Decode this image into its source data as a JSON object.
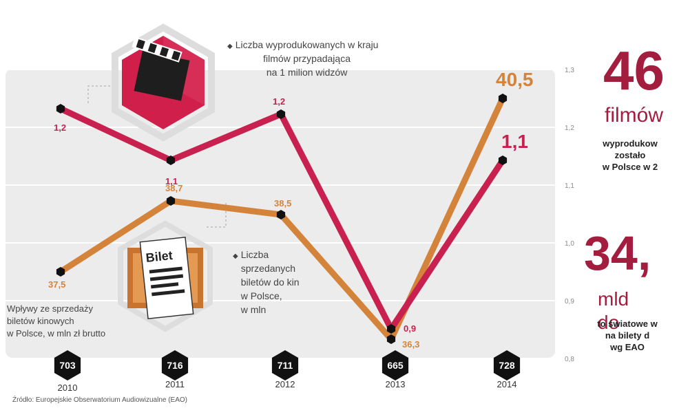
{
  "chart_data": {
    "type": "line",
    "categories": [
      "2010",
      "2011",
      "2012",
      "2013",
      "2014"
    ],
    "series": [
      {
        "name": "Liczba wyprodukowanych w kraju filmów przypadająca na 1 milion widzów",
        "axis": "right",
        "color": "#c8204f",
        "values": [
          1.2,
          1.1,
          1.2,
          0.9,
          1.1
        ],
        "labels": [
          "1,2",
          "1,1",
          "1,2",
          "0,9",
          "1,1"
        ]
      },
      {
        "name": "Liczba sprzedanych biletów do kin w Polsce, w mln",
        "axis": "left",
        "color": "#d4833a",
        "values": [
          37.5,
          38.7,
          38.5,
          36.3,
          40.5
        ],
        "labels": [
          "37,5",
          "38,7",
          "38,5",
          "36,3",
          "40,5"
        ]
      },
      {
        "name": "Wpływy ze sprzedaży biletów kinowych w Polsce, w mln zł brutto",
        "values": [
          703,
          716,
          711,
          665,
          728
        ],
        "labels": [
          "703",
          "716",
          "711",
          "665",
          "728"
        ]
      }
    ],
    "right_axis": {
      "ticks": [
        "1,3",
        "1,2",
        "1,1",
        "1,0",
        "0,9",
        "0,8"
      ]
    },
    "grid": true
  },
  "legend": {
    "films": [
      "Liczba wyprodukowanych w kraju",
      "filmów przypadająca",
      "na 1 milion widzów"
    ],
    "tickets": [
      "Liczba",
      "sprzedanych",
      "biletów do kin",
      "w Polsce,",
      "w mln"
    ],
    "revenue": [
      "Wpływy ze sprzedaży",
      "biletów kinowych",
      "w Polsce, w mln zł brutto"
    ]
  },
  "ticket_icon_label": "Bilet",
  "source": "Źródło: Europejskie Obserwatorium Audiowizualne (EAO)",
  "side_panel": {
    "stat1_value": "46",
    "stat1_unit": "filmów",
    "stat1_desc": [
      "wyprodukow",
      "zostało",
      "w Polsce w 2"
    ],
    "stat2_value": "34,",
    "stat2_unit": "mld do",
    "stat2_desc": [
      "to światowe w",
      "na bilety d",
      "wg EAO"
    ]
  },
  "colors": {
    "crimson": "#c8204f",
    "orange": "#d4833a",
    "dark_red_text": "#a31d3f",
    "panel_bg": "#eeeeee"
  }
}
